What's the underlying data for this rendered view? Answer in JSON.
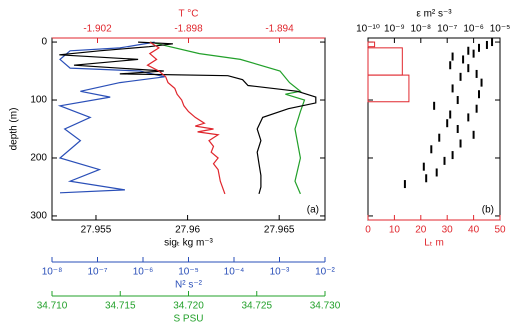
{
  "chart_data": [
    {
      "type": "profile",
      "panel_label": "(a)",
      "ylabel": "depth (m)",
      "ylim": [
        -7,
        307
      ],
      "y_inverted": true,
      "yticks": [
        0,
        100,
        200,
        300
      ],
      "show_ytick_labels": true,
      "axes": {
        "x": {
          "label": "sigₜ kg m⁻³",
          "lim": [
            27.9526,
            27.9675
          ],
          "ticks": [
            27.955,
            27.96,
            27.965
          ],
          "color": "#000000",
          "log": false
        },
        "x2": {
          "label": "T °C",
          "lim": [
            -1.904,
            -1.892
          ],
          "ticks": [
            -1.902,
            -1.898,
            -1.894
          ],
          "color": "#e0262d",
          "log": false
        },
        "x3": {
          "label": "N² s⁻²",
          "lim": [
            1e-08,
            0.01
          ],
          "ticks": [
            {
              "value": 1e-08,
              "label": "10⁻⁸"
            },
            {
              "value": 1e-07,
              "label": "10⁻⁷"
            },
            {
              "value": 1e-06,
              "label": "10⁻⁶"
            },
            {
              "value": 1e-05,
              "label": "10⁻⁵"
            },
            {
              "value": 0.0001,
              "label": "10⁻⁴"
            },
            {
              "value": 0.001,
              "label": "10⁻³"
            },
            {
              "value": 0.01,
              "label": "10⁻²"
            }
          ],
          "color": "#2a4fb8",
          "log": true
        },
        "x4": {
          "label": "S PSU",
          "lim": [
            34.71,
            34.73
          ],
          "ticks": [
            {
              "value": 34.71,
              "label": "34.710"
            },
            34.715,
            {
              "value": 34.72,
              "label": "34.720"
            },
            34.725,
            {
              "value": 34.73,
              "label": "34.730"
            }
          ],
          "color": "#22a02a",
          "log": false
        }
      },
      "series": [
        {
          "axis": "x4",
          "color": "#22a02a",
          "depth": [
            0,
            20,
            30,
            50,
            70,
            85,
            90,
            100,
            120,
            150,
            200,
            240,
            262
          ],
          "values": [
            34.7172,
            34.7208,
            34.7238,
            34.7267,
            34.7274,
            34.7282,
            34.7271,
            34.7285,
            34.7282,
            34.7278,
            34.7282,
            34.7278,
            34.7282
          ]
        },
        {
          "axis": "x3",
          "color": "#2a4fb8",
          "depth": [
            0,
            10,
            15,
            30,
            45,
            50,
            60,
            70,
            85,
            95,
            110,
            130,
            150,
            170,
            200,
            220,
            240,
            255,
            260
          ],
          "values": [
            1.8e-06,
            3.1e-07,
            2.5e-08,
            1.5e-08,
            2.5e-08,
            8.5e-07,
            3e-06,
            3.1e-07,
            4.2e-08,
            1.9e-07,
            1.5e-08,
            6.9e-08,
            1.9e-08,
            4.2e-08,
            1.5e-08,
            1.1e-07,
            2.5e-08,
            4e-07,
            1.5e-08
          ]
        },
        {
          "axis": "x",
          "color": "#000000",
          "depth": [
            0,
            3,
            8,
            15,
            22,
            30,
            40,
            50,
            55,
            58,
            65,
            75,
            85,
            95,
            105,
            115,
            130,
            150,
            170,
            190,
            210,
            230,
            250,
            262
          ],
          "values": [
            27.9573,
            27.9592,
            27.9579,
            27.9552,
            27.953,
            27.9573,
            27.9538,
            27.9587,
            27.9563,
            27.9622,
            27.963,
            27.9633,
            27.966,
            27.967,
            27.967,
            27.9655,
            27.9641,
            27.9638,
            27.964,
            27.9638,
            27.9639,
            27.964,
            27.964,
            27.9639
          ]
        },
        {
          "axis": "x2",
          "color": "#e0262d",
          "depth": [
            0,
            10,
            20,
            30,
            40,
            50,
            60,
            70,
            80,
            90,
            100,
            110,
            120,
            130,
            140,
            145,
            150,
            155,
            160,
            170,
            180,
            190,
            200,
            210,
            220,
            240,
            262
          ],
          "values": [
            -1.8997,
            -1.8993,
            -1.8997,
            -1.8994,
            -1.8998,
            -1.8993,
            -1.899,
            -1.8989,
            -1.8986,
            -1.8985,
            -1.8983,
            -1.8982,
            -1.898,
            -1.8977,
            -1.8973,
            -1.8977,
            -1.8969,
            -1.8976,
            -1.8967,
            -1.8971,
            -1.8969,
            -1.897,
            -1.8967,
            -1.8969,
            -1.8967,
            -1.8966,
            -1.8964
          ]
        }
      ]
    },
    {
      "type": "profile",
      "panel_label": "(b)",
      "ylim": [
        -7,
        307
      ],
      "y_inverted": true,
      "yticks": [
        0,
        100,
        200,
        300
      ],
      "show_ytick_labels": false,
      "axes": {
        "x": {
          "label": "Lₜ m",
          "lim": [
            0,
            50
          ],
          "ticks": [
            0,
            10,
            20,
            30,
            40,
            50
          ],
          "color": "#e0262d",
          "log": false
        },
        "x2": {
          "label": "ε m² s⁻³",
          "lim": [
            1e-10,
            1e-05
          ],
          "ticks": [
            {
              "value": 1e-10,
              "label": "10⁻¹⁰"
            },
            {
              "value": 1e-09,
              "label": "10⁻⁹"
            },
            {
              "value": 1e-08,
              "label": "10⁻⁸"
            },
            {
              "value": 1e-07,
              "label": "10⁻⁷"
            },
            {
              "value": 1e-06,
              "label": "10⁻⁶"
            },
            {
              "value": 1e-05,
              "label": "10⁻⁵"
            }
          ],
          "color": "#000000",
          "log": false
        }
      },
      "overturns": {
        "axis": "x",
        "color": "#e0262d",
        "depth_top": [
          0,
          10,
          57
        ],
        "depth_bottom": [
          8,
          57,
          103
        ],
        "values": [
          2.5,
          13,
          15.5
        ]
      },
      "dissipation": {
        "axis": "x2",
        "color": "#000000",
        "depth": [
          0,
          5,
          10,
          15,
          20,
          25,
          30,
          40,
          45,
          55,
          60,
          70,
          80,
          90,
          100,
          110,
          115,
          125,
          130,
          140,
          150,
          160,
          165,
          175,
          185,
          195,
          205,
          215,
          225,
          235,
          245
        ],
        "values": [
          5e-06,
          3.2e-06,
          1.6e-06,
          6.3e-07,
          1e-06,
          1.6e-07,
          4e-07,
          1.3e-07,
          6.3e-07,
          1.3e-06,
          3.2e-07,
          2e-06,
          1.6e-07,
          1.6e-06,
          2.5e-07,
          3.2e-08,
          1.3e-06,
          1.3e-07,
          6.3e-07,
          1e-07,
          2.5e-07,
          1e-06,
          5e-08,
          3.2e-07,
          2.5e-08,
          1.6e-07,
          7.9e-08,
          1.3e-08,
          4e-08,
          1.6e-08,
          2.5e-09
        ]
      }
    }
  ]
}
